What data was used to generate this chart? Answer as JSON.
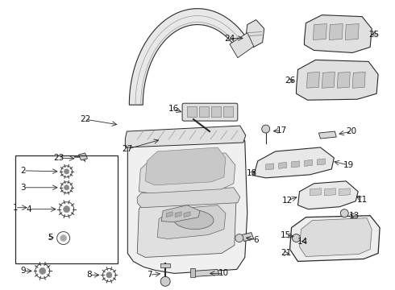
{
  "bg_color": "#ffffff",
  "line_color": "#2a2a2a",
  "fill_light": "#f2f2f2",
  "fill_mid": "#e0e0e0",
  "fill_dark": "#c8c8c8",
  "label_fs": 7.5,
  "arrow_lw": 0.65
}
